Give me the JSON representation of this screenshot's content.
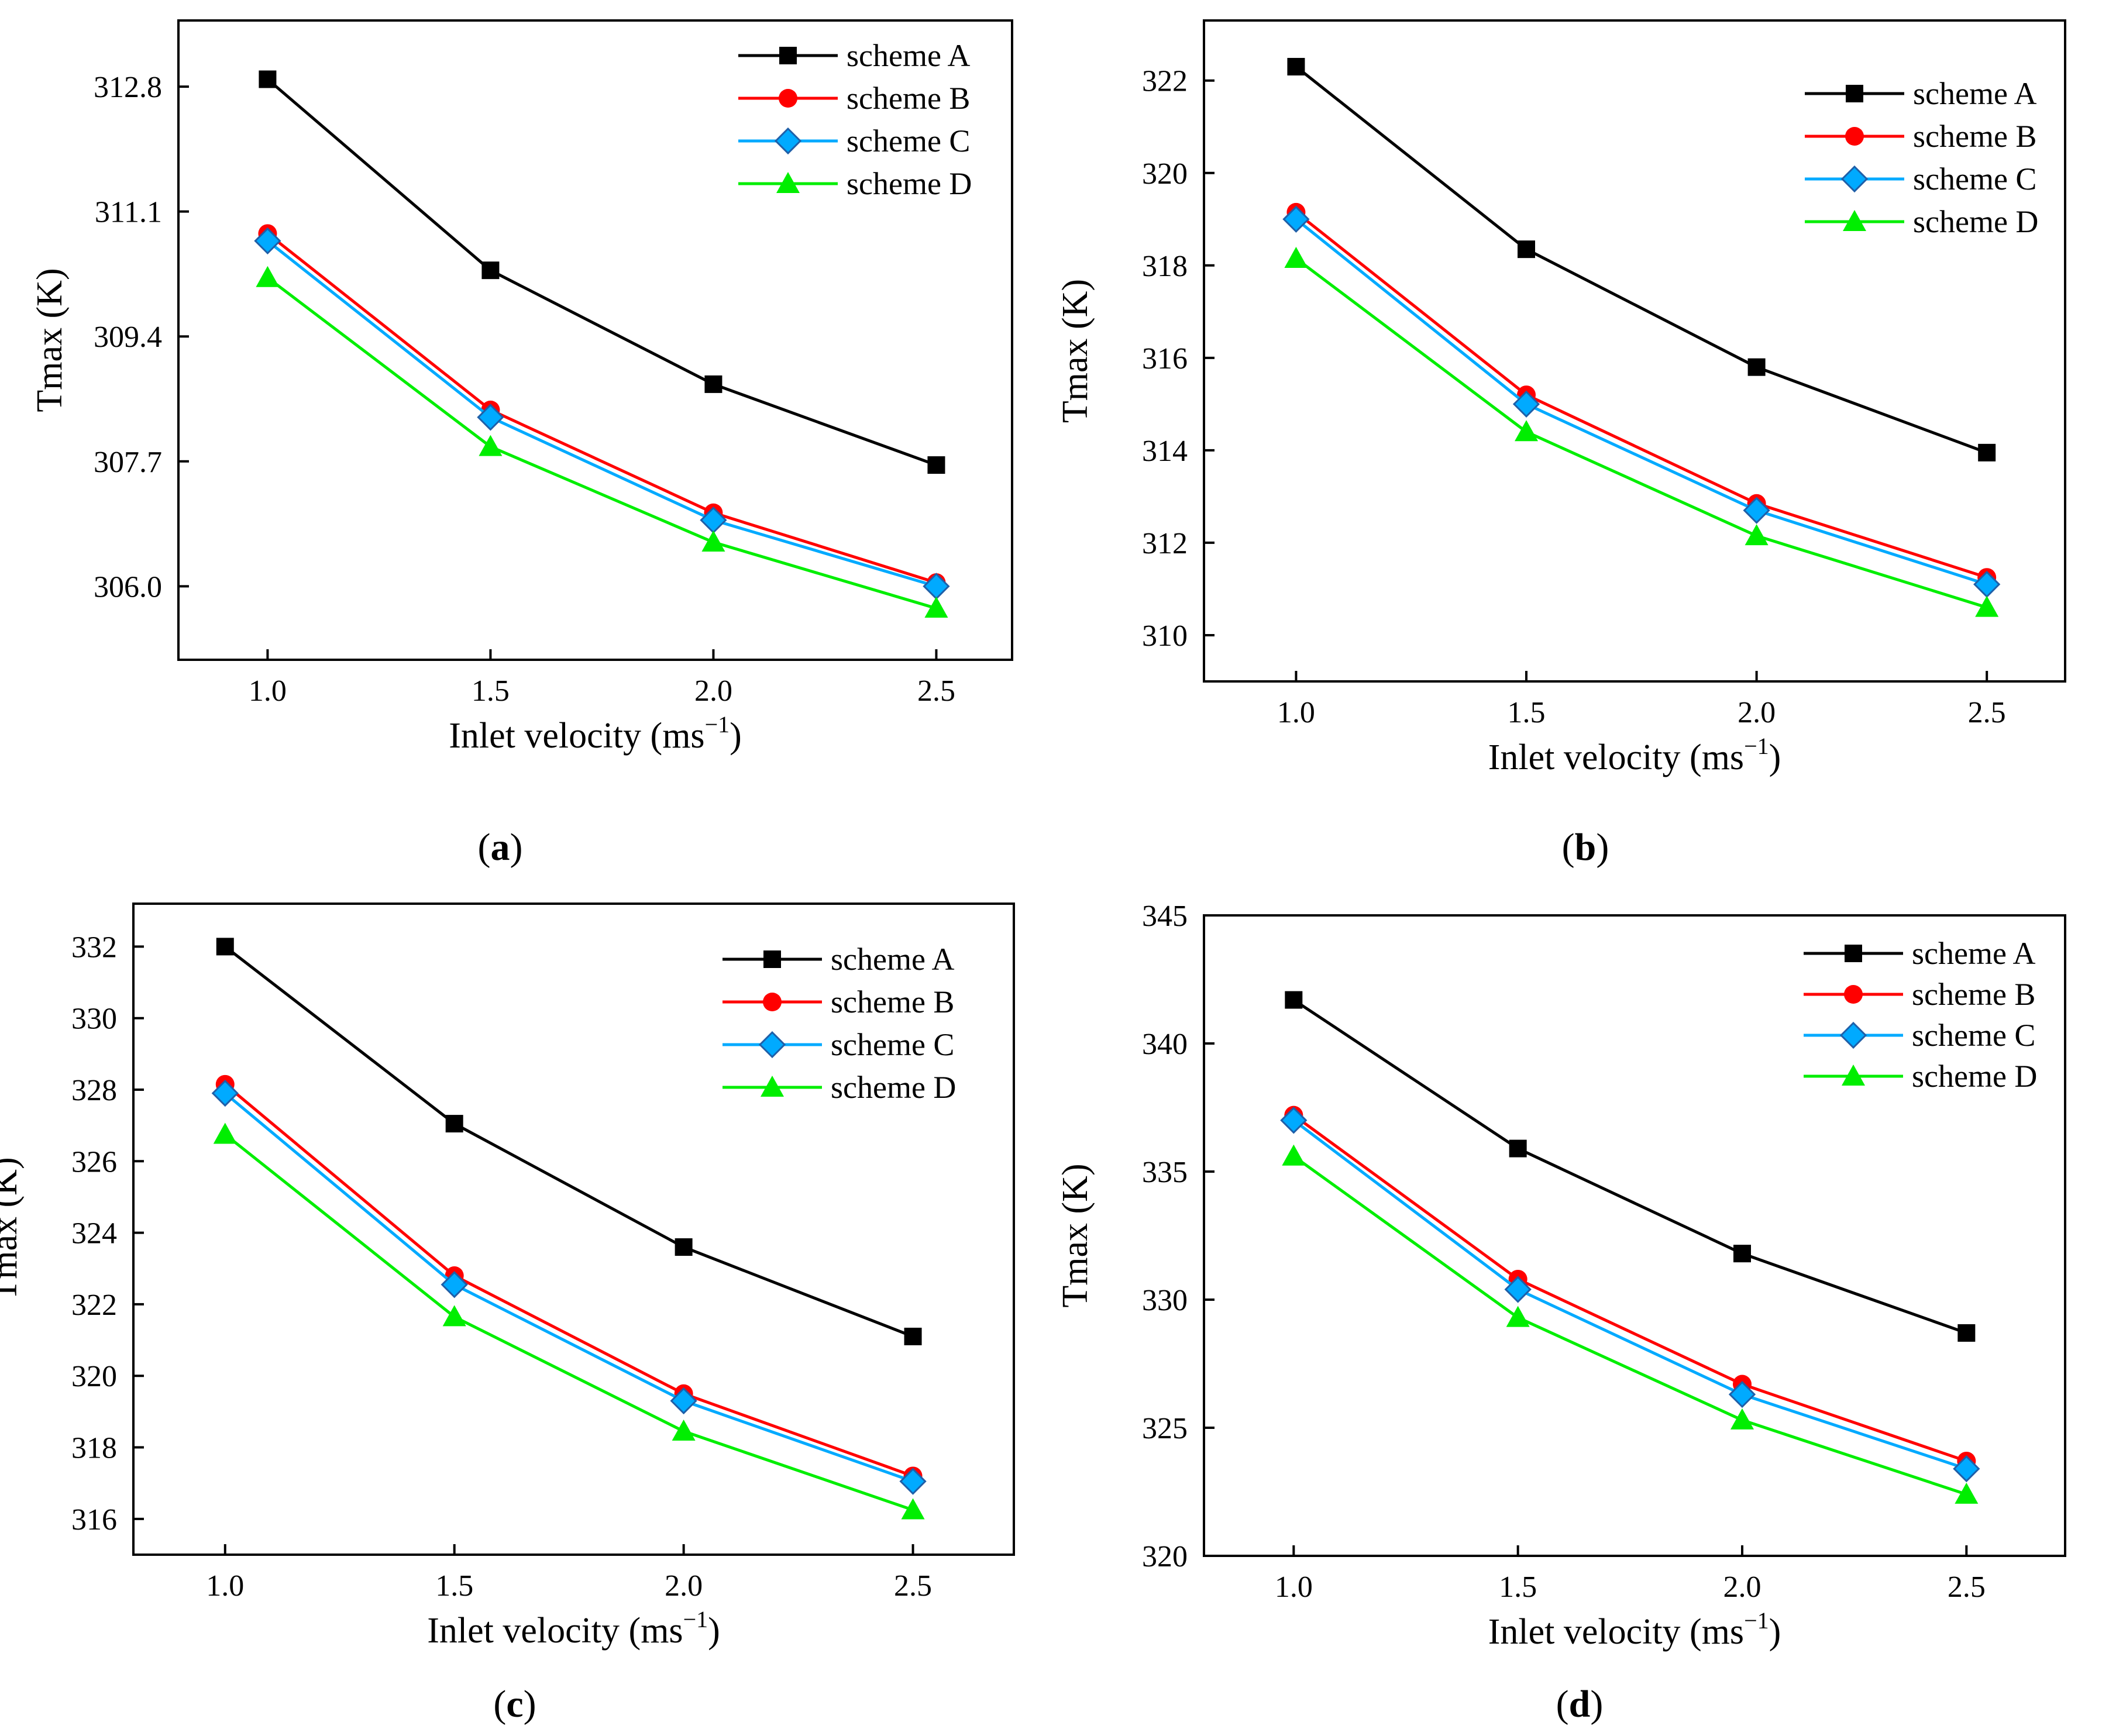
{
  "figure": {
    "panels": [
      "a",
      "b",
      "c",
      "d"
    ]
  },
  "chart_data": [
    {
      "id": "a",
      "caption_letter": "a",
      "type": "line",
      "xlabel": "Inlet velocity (ms",
      "xlabel_sup": "−1",
      "xlabel_close": ")",
      "ylabel": "Tmax (K)",
      "x": [
        1.0,
        1.5,
        2.0,
        2.5
      ],
      "x_ticks": [
        "1.0",
        "1.5",
        "2.0",
        "2.5"
      ],
      "y_ticks": [
        "306.0",
        "307.7",
        "309.4",
        "311.1",
        "312.8"
      ],
      "xlim": [
        0.8,
        2.67
      ],
      "ylim": [
        305.0,
        313.7
      ],
      "series": [
        {
          "name": "scheme A",
          "color": "#000000",
          "marker": "square",
          "values": [
            312.9,
            310.3,
            308.75,
            307.65
          ]
        },
        {
          "name": "scheme B",
          "color": "#ff0000",
          "marker": "circle",
          "values": [
            310.8,
            308.4,
            307.0,
            306.05
          ]
        },
        {
          "name": "scheme C",
          "color": "#00aaff",
          "marker": "diamond",
          "values": [
            310.7,
            308.3,
            306.9,
            306.0
          ]
        },
        {
          "name": "scheme D",
          "color": "#00ee00",
          "marker": "triangle",
          "values": [
            310.2,
            307.9,
            306.6,
            305.7
          ]
        }
      ]
    },
    {
      "id": "b",
      "caption_letter": "b",
      "type": "line",
      "xlabel": "Inlet velocity (ms",
      "xlabel_sup": "−1",
      "xlabel_close": ")",
      "ylabel": "Tmax (K)",
      "x": [
        1.0,
        1.5,
        2.0,
        2.5
      ],
      "x_ticks": [
        "1.0",
        "1.5",
        "2.0",
        "2.5"
      ],
      "y_ticks": [
        "310",
        "312",
        "314",
        "316",
        "318",
        "320",
        "322"
      ],
      "xlim": [
        0.8,
        2.67
      ],
      "ylim": [
        309.0,
        323.3
      ],
      "series": [
        {
          "name": "scheme A",
          "color": "#000000",
          "marker": "square",
          "values": [
            322.3,
            318.35,
            315.8,
            313.95
          ]
        },
        {
          "name": "scheme B",
          "color": "#ff0000",
          "marker": "circle",
          "values": [
            319.15,
            315.2,
            312.85,
            311.25
          ]
        },
        {
          "name": "scheme C",
          "color": "#00aaff",
          "marker": "diamond",
          "values": [
            319.0,
            315.0,
            312.7,
            311.1
          ]
        },
        {
          "name": "scheme D",
          "color": "#00ee00",
          "marker": "triangle",
          "values": [
            318.15,
            314.4,
            312.15,
            310.6
          ]
        }
      ]
    },
    {
      "id": "c",
      "caption_letter": "c",
      "type": "line",
      "xlabel": "Inlet velocity (ms",
      "xlabel_sup": "−1",
      "xlabel_close": ")",
      "ylabel": "Tmax (K)",
      "x": [
        1.0,
        1.5,
        2.0,
        2.5
      ],
      "x_ticks": [
        "1.0",
        "1.5",
        "2.0",
        "2.5"
      ],
      "y_ticks": [
        "316",
        "318",
        "320",
        "322",
        "324",
        "326",
        "328",
        "330",
        "332"
      ],
      "xlim": [
        0.8,
        2.72
      ],
      "ylim": [
        315.0,
        333.2
      ],
      "series": [
        {
          "name": "scheme A",
          "color": "#000000",
          "marker": "square",
          "values": [
            332.0,
            327.05,
            323.6,
            321.1
          ]
        },
        {
          "name": "scheme B",
          "color": "#ff0000",
          "marker": "circle",
          "values": [
            328.15,
            322.8,
            319.5,
            317.2
          ]
        },
        {
          "name": "scheme C",
          "color": "#00aaff",
          "marker": "diamond",
          "values": [
            327.9,
            322.55,
            319.3,
            317.05
          ]
        },
        {
          "name": "scheme D",
          "color": "#00ee00",
          "marker": "triangle",
          "values": [
            326.75,
            321.65,
            318.45,
            316.25
          ]
        }
      ]
    },
    {
      "id": "d",
      "caption_letter": "d",
      "type": "line",
      "xlabel": "Inlet velocity (ms",
      "xlabel_sup": "−1",
      "xlabel_close": ")",
      "ylabel": "Tmax (K)",
      "x": [
        1.0,
        1.5,
        2.0,
        2.5
      ],
      "x_ticks": [
        "1.0",
        "1.5",
        "2.0",
        "2.5"
      ],
      "y_ticks": [
        "320",
        "325",
        "330",
        "335",
        "340",
        "345"
      ],
      "xlim": [
        0.8,
        2.72
      ],
      "ylim": [
        320.0,
        345.0
      ],
      "series": [
        {
          "name": "scheme A",
          "color": "#000000",
          "marker": "square",
          "values": [
            341.7,
            335.9,
            331.8,
            328.7
          ]
        },
        {
          "name": "scheme B",
          "color": "#ff0000",
          "marker": "circle",
          "values": [
            337.2,
            330.8,
            326.7,
            323.7
          ]
        },
        {
          "name": "scheme C",
          "color": "#00aaff",
          "marker": "diamond",
          "values": [
            337.0,
            330.4,
            326.3,
            323.4
          ]
        },
        {
          "name": "scheme D",
          "color": "#00ee00",
          "marker": "triangle",
          "values": [
            335.6,
            329.3,
            325.3,
            322.4
          ]
        }
      ]
    }
  ]
}
